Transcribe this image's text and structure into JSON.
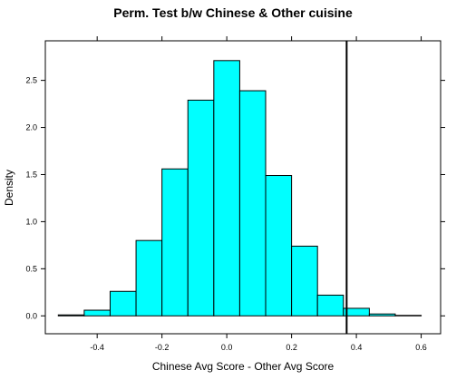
{
  "chart_data": {
    "type": "bar",
    "title": "Perm. Test b/w Chinese & Other cuisine",
    "xlabel": "Chinese Avg Score - Other Avg Score",
    "ylabel": "Density",
    "xlim": [
      -0.56,
      0.66
    ],
    "ylim": [
      -0.19,
      2.92
    ],
    "x_ticks": [
      -0.4,
      -0.2,
      0.0,
      0.2,
      0.4,
      0.6
    ],
    "x_tick_labels": [
      "-0.4",
      "-0.2",
      "0.0",
      "0.2",
      "0.4",
      "0.6"
    ],
    "y_ticks": [
      0.0,
      0.5,
      1.0,
      1.5,
      2.0,
      2.5
    ],
    "y_tick_labels": [
      "0.0",
      "0.5",
      "1.0",
      "1.5",
      "2.0",
      "2.5"
    ],
    "bin_edges": [
      -0.52,
      -0.44,
      -0.36,
      -0.28,
      -0.2,
      -0.12,
      -0.04,
      0.04,
      0.12,
      0.2,
      0.28,
      0.36,
      0.44,
      0.52,
      0.6
    ],
    "values": [
      0.01,
      0.06,
      0.26,
      0.8,
      1.56,
      2.29,
      2.71,
      2.39,
      1.49,
      0.74,
      0.22,
      0.08,
      0.02,
      0.005
    ],
    "vline_x": 0.37,
    "grid": false,
    "colors": {
      "bar_fill": "#00FFFF",
      "bar_stroke": "#000000",
      "vline": "#000000"
    }
  }
}
